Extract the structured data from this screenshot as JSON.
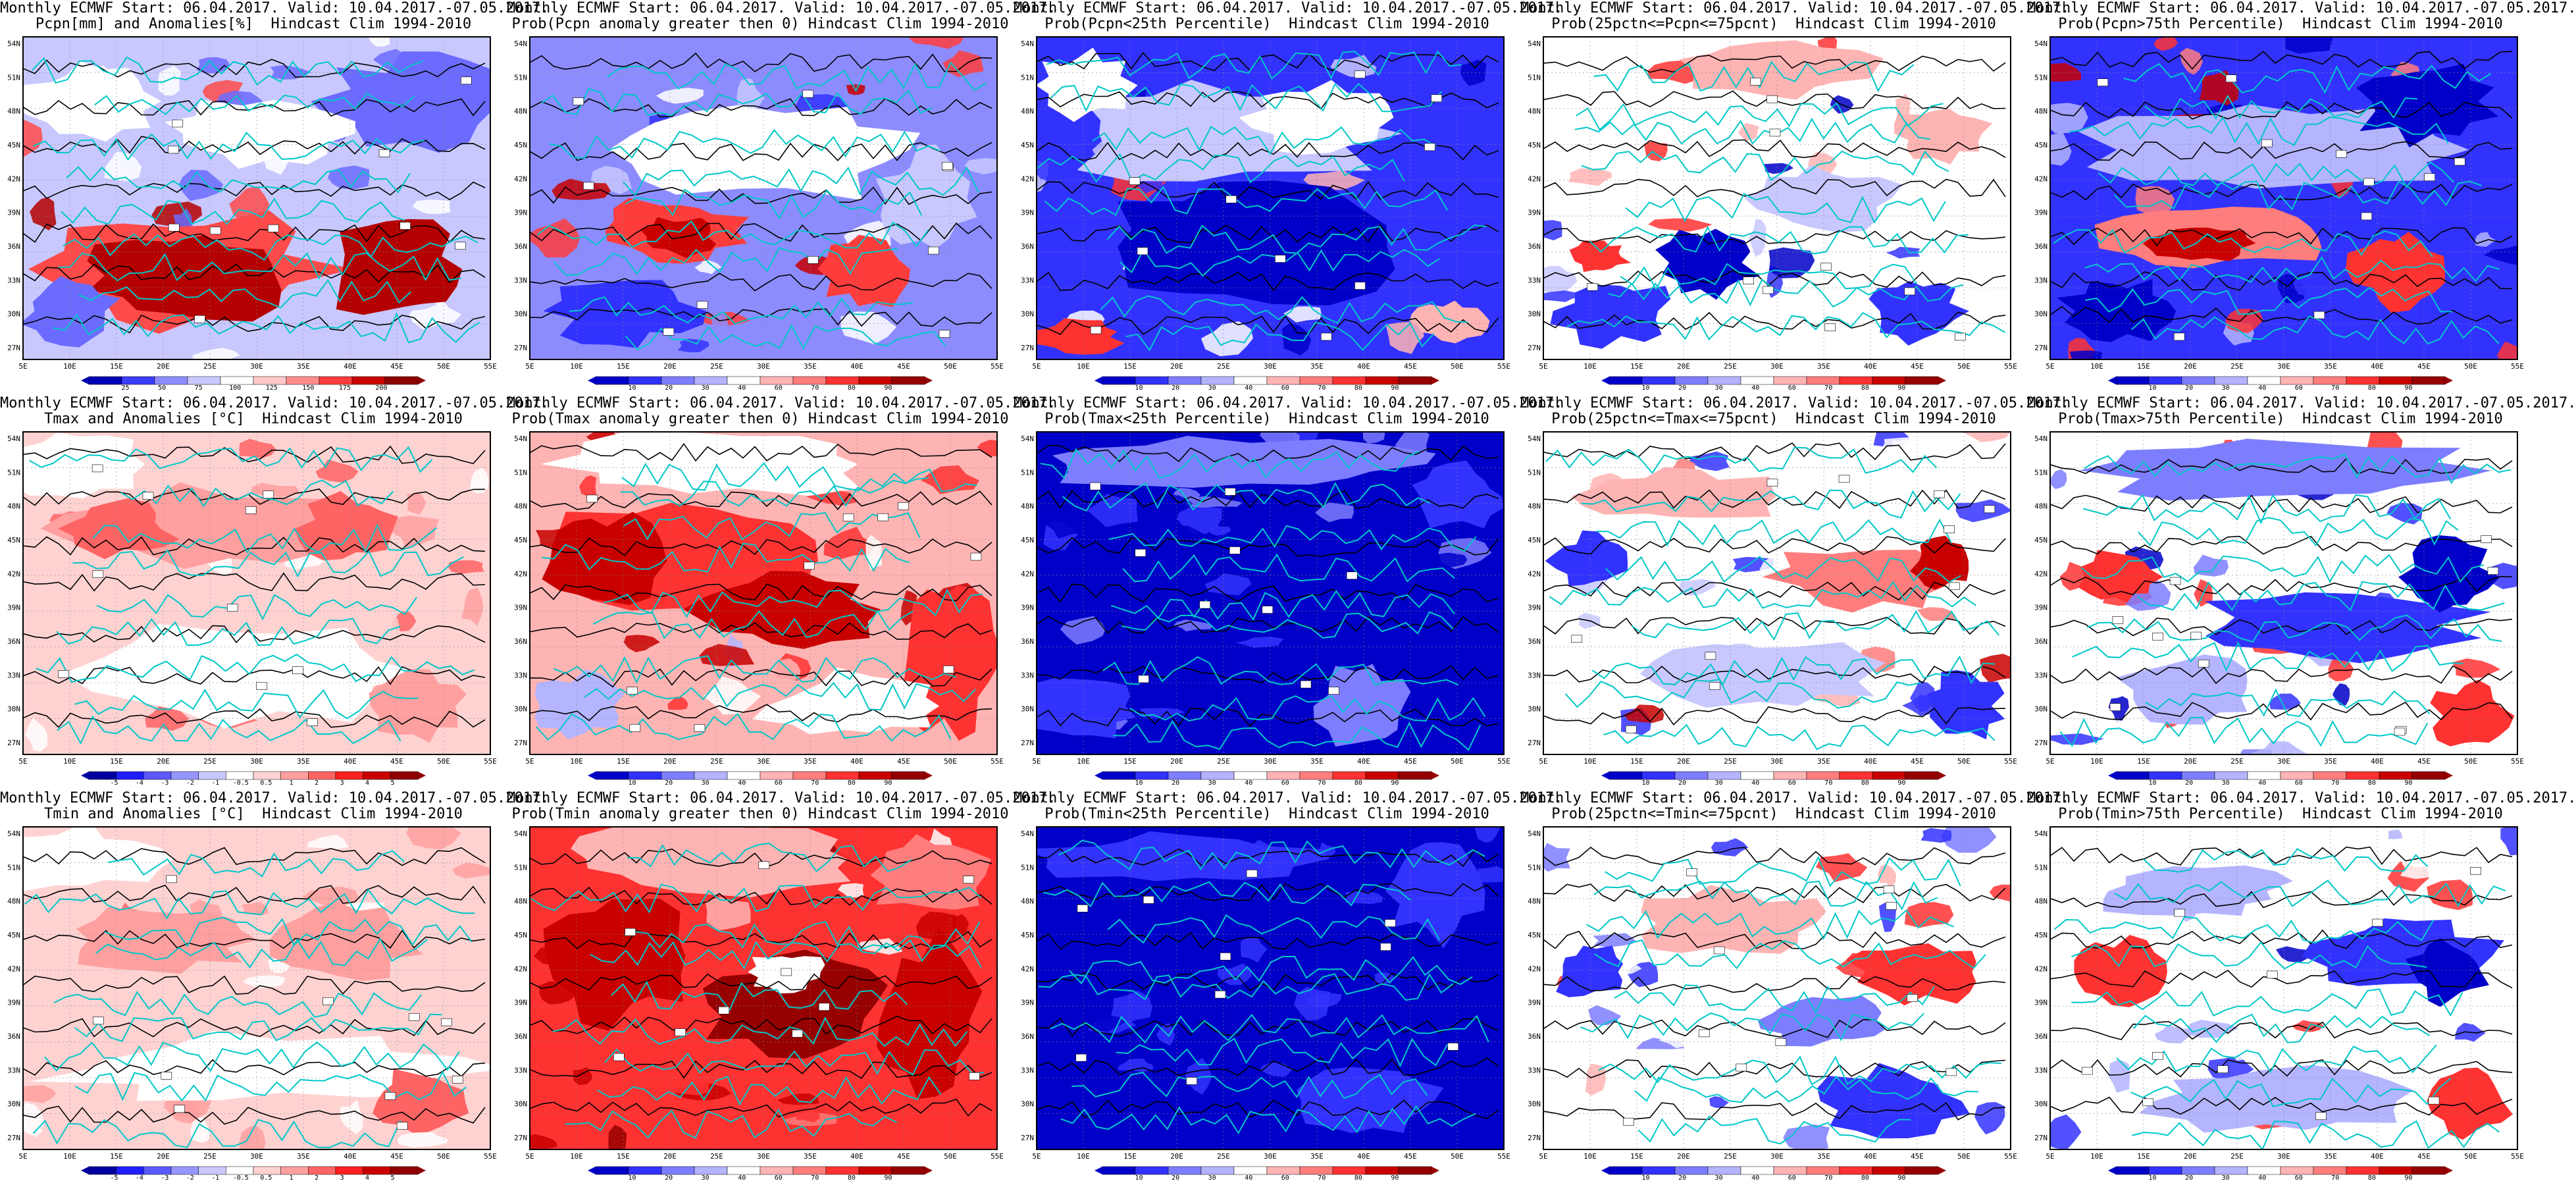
{
  "figure": {
    "rows": [
      "Pcpn",
      "Tmax",
      "Tmin"
    ],
    "colorbar_scales": {
      "pcpn_anom": {
        "ticks": [
          "25",
          "50",
          "75",
          "100",
          "125",
          "150",
          "175",
          "200"
        ]
      },
      "temp_anom": {
        "ticks": [
          "-5",
          "-4",
          "-3",
          "-2",
          "-1",
          "-0.5",
          "0.5",
          "1",
          "2",
          "3",
          "4",
          "5"
        ]
      },
      "prob": {
        "ticks": [
          "10",
          "20",
          "30",
          "40",
          "60",
          "70",
          "80",
          "90"
        ]
      }
    },
    "axis": {
      "lon_ticks": [
        "5E",
        "10E",
        "15E",
        "20E",
        "25E",
        "30E",
        "35E",
        "40E",
        "45E",
        "50E",
        "55E"
      ],
      "lat_ticks": [
        "54N",
        "51N",
        "48N",
        "45N",
        "42N",
        "39N",
        "36N",
        "33N",
        "30N",
        "27N"
      ]
    },
    "colors": {
      "land_contour": "#00c8c8",
      "isoline": "#000000",
      "strong_red": "#b40000",
      "mid_red": "#ff4a4a",
      "light_red": "#ffb4b4",
      "strong_blue": "#0000d0",
      "mid_blue": "#6b6bff",
      "light_blue": "#c8c8ff"
    },
    "panels": [
      {
        "title1": "Monthly ECMWF Start: 06.04.2017. Valid: 10.04.2017.-07.05.2017.",
        "title2": "Pcpn[mm] and Anomalies[%]  Hindcast Clim 1994-2010",
        "scale": "pcpn_anom",
        "pattern": "P1"
      },
      {
        "title1": "Monthly ECMWF Start: 06.04.2017. Valid: 10.04.2017.-07.05.2017.",
        "title2": "Prob(Pcpn anomaly greater then 0) Hindcast Clim 1994-2010",
        "scale": "prob",
        "pattern": "P2"
      },
      {
        "title1": "Monthly ECMWF Start: 06.04.2017. Valid: 10.04.2017.-07.05.2017.",
        "title2": "Prob(Pcpn<25th Percentile)  Hindcast Clim 1994-2010",
        "scale": "prob",
        "pattern": "P3"
      },
      {
        "title1": "Monthly ECMWF Start: 06.04.2017. Valid: 10.04.2017.-07.05.2017.",
        "title2": "Prob(25pctn<=Pcpn<=75pcnt)  Hindcast Clim 1994-2010",
        "scale": "prob",
        "pattern": "P4"
      },
      {
        "title1": "Monthly ECMWF Start: 06.04.2017. Valid: 10.04.2017.-07.05.2017.",
        "title2": "Prob(Pcpn>75th Percentile)  Hindcast Clim 1994-2010",
        "scale": "prob",
        "pattern": "P5"
      },
      {
        "title1": "Monthly ECMWF Start: 06.04.2017. Valid: 10.04.2017.-07.05.2017.",
        "title2": "Tmax and Anomalies [°C]  Hindcast Clim 1994-2010",
        "scale": "temp_anom",
        "pattern": "T1"
      },
      {
        "title1": "Monthly ECMWF Start: 06.04.2017. Valid: 10.04.2017.-07.05.2017.",
        "title2": "Prob(Tmax anomaly greater then 0) Hindcast Clim 1994-2010",
        "scale": "prob",
        "pattern": "T2"
      },
      {
        "title1": "Monthly ECMWF Start: 06.04.2017. Valid: 10.04.2017.-07.05.2017.",
        "title2": "Prob(Tmax<25th Percentile)  Hindcast Clim 1994-2010",
        "scale": "prob",
        "pattern": "T3"
      },
      {
        "title1": "Monthly ECMWF Start: 06.04.2017. Valid: 10.04.2017.-07.05.2017.",
        "title2": "Prob(25pctn<=Tmax<=75pcnt)  Hindcast Clim 1994-2010",
        "scale": "prob",
        "pattern": "T4"
      },
      {
        "title1": "Monthly ECMWF Start: 06.04.2017. Valid: 10.04.2017.-07.05.2017.",
        "title2": "Prob(Tmax>75th Percentile)  Hindcast Clim 1994-2010",
        "scale": "prob",
        "pattern": "T5"
      },
      {
        "title1": "Monthly ECMWF Start: 06.04.2017. Valid: 10.04.2017.-07.05.2017.",
        "title2": "Tmin and Anomalies [°C]  Hindcast Clim 1994-2010",
        "scale": "temp_anom",
        "pattern": "N1"
      },
      {
        "title1": "Monthly ECMWF Start: 06.04.2017. Valid: 10.04.2017.-07.05.2017.",
        "title2": "Prob(Tmin anomaly greater then 0) Hindcast Clim 1994-2010",
        "scale": "prob",
        "pattern": "N2"
      },
      {
        "title1": "Monthly ECMWF Start: 06.04.2017. Valid: 10.04.2017.-07.05.2017.",
        "title2": "Prob(Tmin<25th Percentile)  Hindcast Clim 1994-2010",
        "scale": "prob",
        "pattern": "N3"
      },
      {
        "title1": "Monthly ECMWF Start: 06.04.2017. Valid: 10.04.2017.-07.05.2017.",
        "title2": "Prob(25pctn<=Tmin<=75pcnt)  Hindcast Clim 1994-2010",
        "scale": "prob",
        "pattern": "N4"
      },
      {
        "title1": "Monthly ECMWF Start: 06.04.2017. Valid: 10.04.2017.-07.05.2017.",
        "title2": "Prob(Tmin>75th Percentile)  Hindcast Clim 1994-2010",
        "scale": "prob",
        "pattern": "N5"
      }
    ]
  }
}
